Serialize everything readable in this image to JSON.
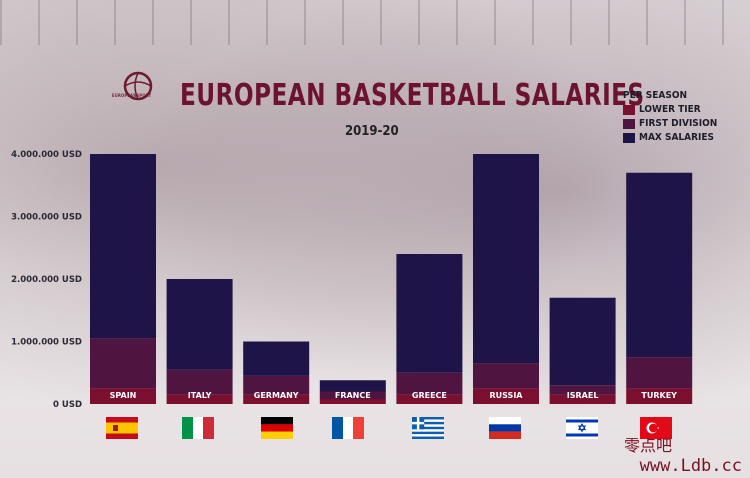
{
  "title": "EUROPEAN BASKETBALL SALARIES",
  "subtitle": "2019-20",
  "logo_text": "EUROPEANSPORT",
  "legend": {
    "header": "PER SEASON",
    "items": [
      {
        "label": "LOWER TIER",
        "color": "#7b0f2f"
      },
      {
        "label": "FIRST DIVISION",
        "color": "#4f1540"
      },
      {
        "label": "MAX SALARIES",
        "color": "#1e1447"
      }
    ]
  },
  "watermark": {
    "line1": "零点吧",
    "line2": "www.Ldb.cc"
  },
  "chart_data": {
    "type": "bar",
    "stacked": true,
    "title": "EUROPEAN BASKETBALL SALARIES",
    "subtitle": "2019-20",
    "categories": [
      "SPAIN",
      "ITALY",
      "GERMANY",
      "FRANCE",
      "GREECE",
      "RUSSIA",
      "ISRAEL",
      "TURKEY"
    ],
    "series": [
      {
        "name": "LOWER TIER",
        "color": "#7b0f2f",
        "values": [
          250000,
          150000,
          150000,
          80000,
          150000,
          250000,
          150000,
          250000
        ]
      },
      {
        "name": "FIRST DIVISION",
        "color": "#4f1540",
        "values": [
          800000,
          400000,
          300000,
          120000,
          350000,
          400000,
          150000,
          500000
        ]
      },
      {
        "name": "MAX SALARIES",
        "color": "#1e1447",
        "values": [
          2950000,
          1450000,
          550000,
          180000,
          1900000,
          3350000,
          1400000,
          2950000
        ]
      }
    ],
    "ylim": [
      0,
      4000000
    ],
    "yticks": [
      "0 USD",
      "1.000.000 USD",
      "2.000.000 USD",
      "3.000.000 USD",
      "4.000.000 USD"
    ],
    "ytick_values": [
      0,
      1000000,
      2000000,
      3000000,
      4000000
    ],
    "legend_position": "top-right",
    "grid": false
  },
  "flags": [
    "spain",
    "italy",
    "germany",
    "france",
    "greece",
    "russia",
    "israel",
    "turkey"
  ]
}
